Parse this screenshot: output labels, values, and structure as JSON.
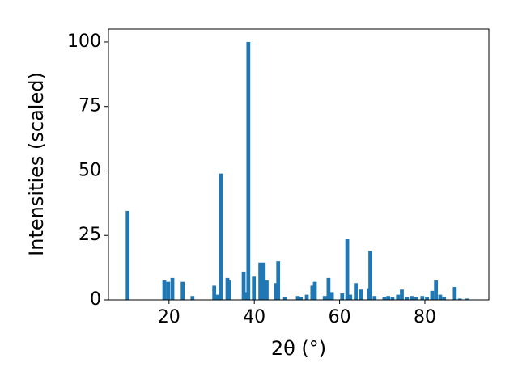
{
  "chart_data": {
    "type": "bar",
    "xlabel": "2θ (°)",
    "ylabel": "Intensities (scaled)",
    "x": [
      10.3,
      18.9,
      19.8,
      20.8,
      23.2,
      25.5,
      30.6,
      31.4,
      32.2,
      33.7,
      34.1,
      37.5,
      38.0,
      38.6,
      39.9,
      41.4,
      42.2,
      42.9,
      45.1,
      45.6,
      47.2,
      50.2,
      50.9,
      52.3,
      53.6,
      54.2,
      56.5,
      57.4,
      58.2,
      60.6,
      61.8,
      62.5,
      63.8,
      65.0,
      66.9,
      67.2,
      68.2,
      70.5,
      71.4,
      72.4,
      73.7,
      74.6,
      75.8,
      76.9,
      77.9,
      79.4,
      80.5,
      81.7,
      82.6,
      83.6,
      84.5,
      87.0,
      88.2,
      89.9
    ],
    "values": [
      34.5,
      7.5,
      7,
      8.5,
      7,
      1.5,
      5.5,
      2,
      49,
      8.5,
      7.5,
      11,
      3,
      100,
      9,
      14.5,
      14.5,
      7.5,
      6.5,
      15,
      1,
      1.5,
      1,
      2,
      5.5,
      7,
      1.5,
      8.5,
      3,
      2.5,
      23.5,
      2,
      6.5,
      4,
      4.5,
      19,
      1.5,
      1,
      1.5,
      1,
      2,
      4,
      1,
      1.5,
      1,
      1.5,
      1,
      3.5,
      7.5,
      2,
      1,
      5,
      0.5,
      0.5
    ],
    "color": "#1f77b4",
    "xlim": [
      5.8,
      95
    ],
    "ylim": [
      0,
      105
    ],
    "xticks": [
      20,
      40,
      60,
      80
    ],
    "yticks": [
      0,
      25,
      50,
      75,
      100
    ]
  }
}
